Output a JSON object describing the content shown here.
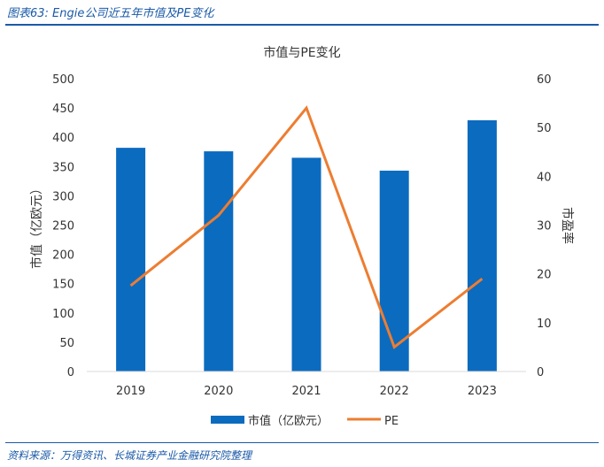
{
  "figure": {
    "caption": "图表63:  Engie公司近五年市值及PE变化",
    "source": "资料来源：万得资讯、长城证券产业金融研究院整理"
  },
  "chart_data": {
    "type": "bar+line",
    "title": "市值与PE变化",
    "categories": [
      "2019",
      "2020",
      "2021",
      "2022",
      "2023"
    ],
    "series": [
      {
        "name": "市值（亿欧元）",
        "type": "bar",
        "axis": "left",
        "color": "#0b6bbf",
        "values": [
          382,
          376,
          365,
          343,
          429
        ]
      },
      {
        "name": "PE",
        "type": "line",
        "axis": "right",
        "color": "#ed7d31",
        "values": [
          17.6,
          32,
          54,
          5,
          19
        ]
      }
    ],
    "y_left": {
      "label": "市值（亿欧元）",
      "min": 0,
      "max": 500,
      "step": 50,
      "ticks": [
        "0",
        "50",
        "100",
        "150",
        "200",
        "250",
        "300",
        "350",
        "400",
        "450",
        "500"
      ]
    },
    "y_right": {
      "label": "市盈率",
      "min": 0,
      "max": 60,
      "step": 10,
      "ticks": [
        "0",
        "10",
        "20",
        "30",
        "40",
        "50",
        "60"
      ]
    },
    "legend": {
      "position": "bottom",
      "items": [
        "市值（亿欧元）",
        "PE"
      ]
    },
    "grid": false
  }
}
